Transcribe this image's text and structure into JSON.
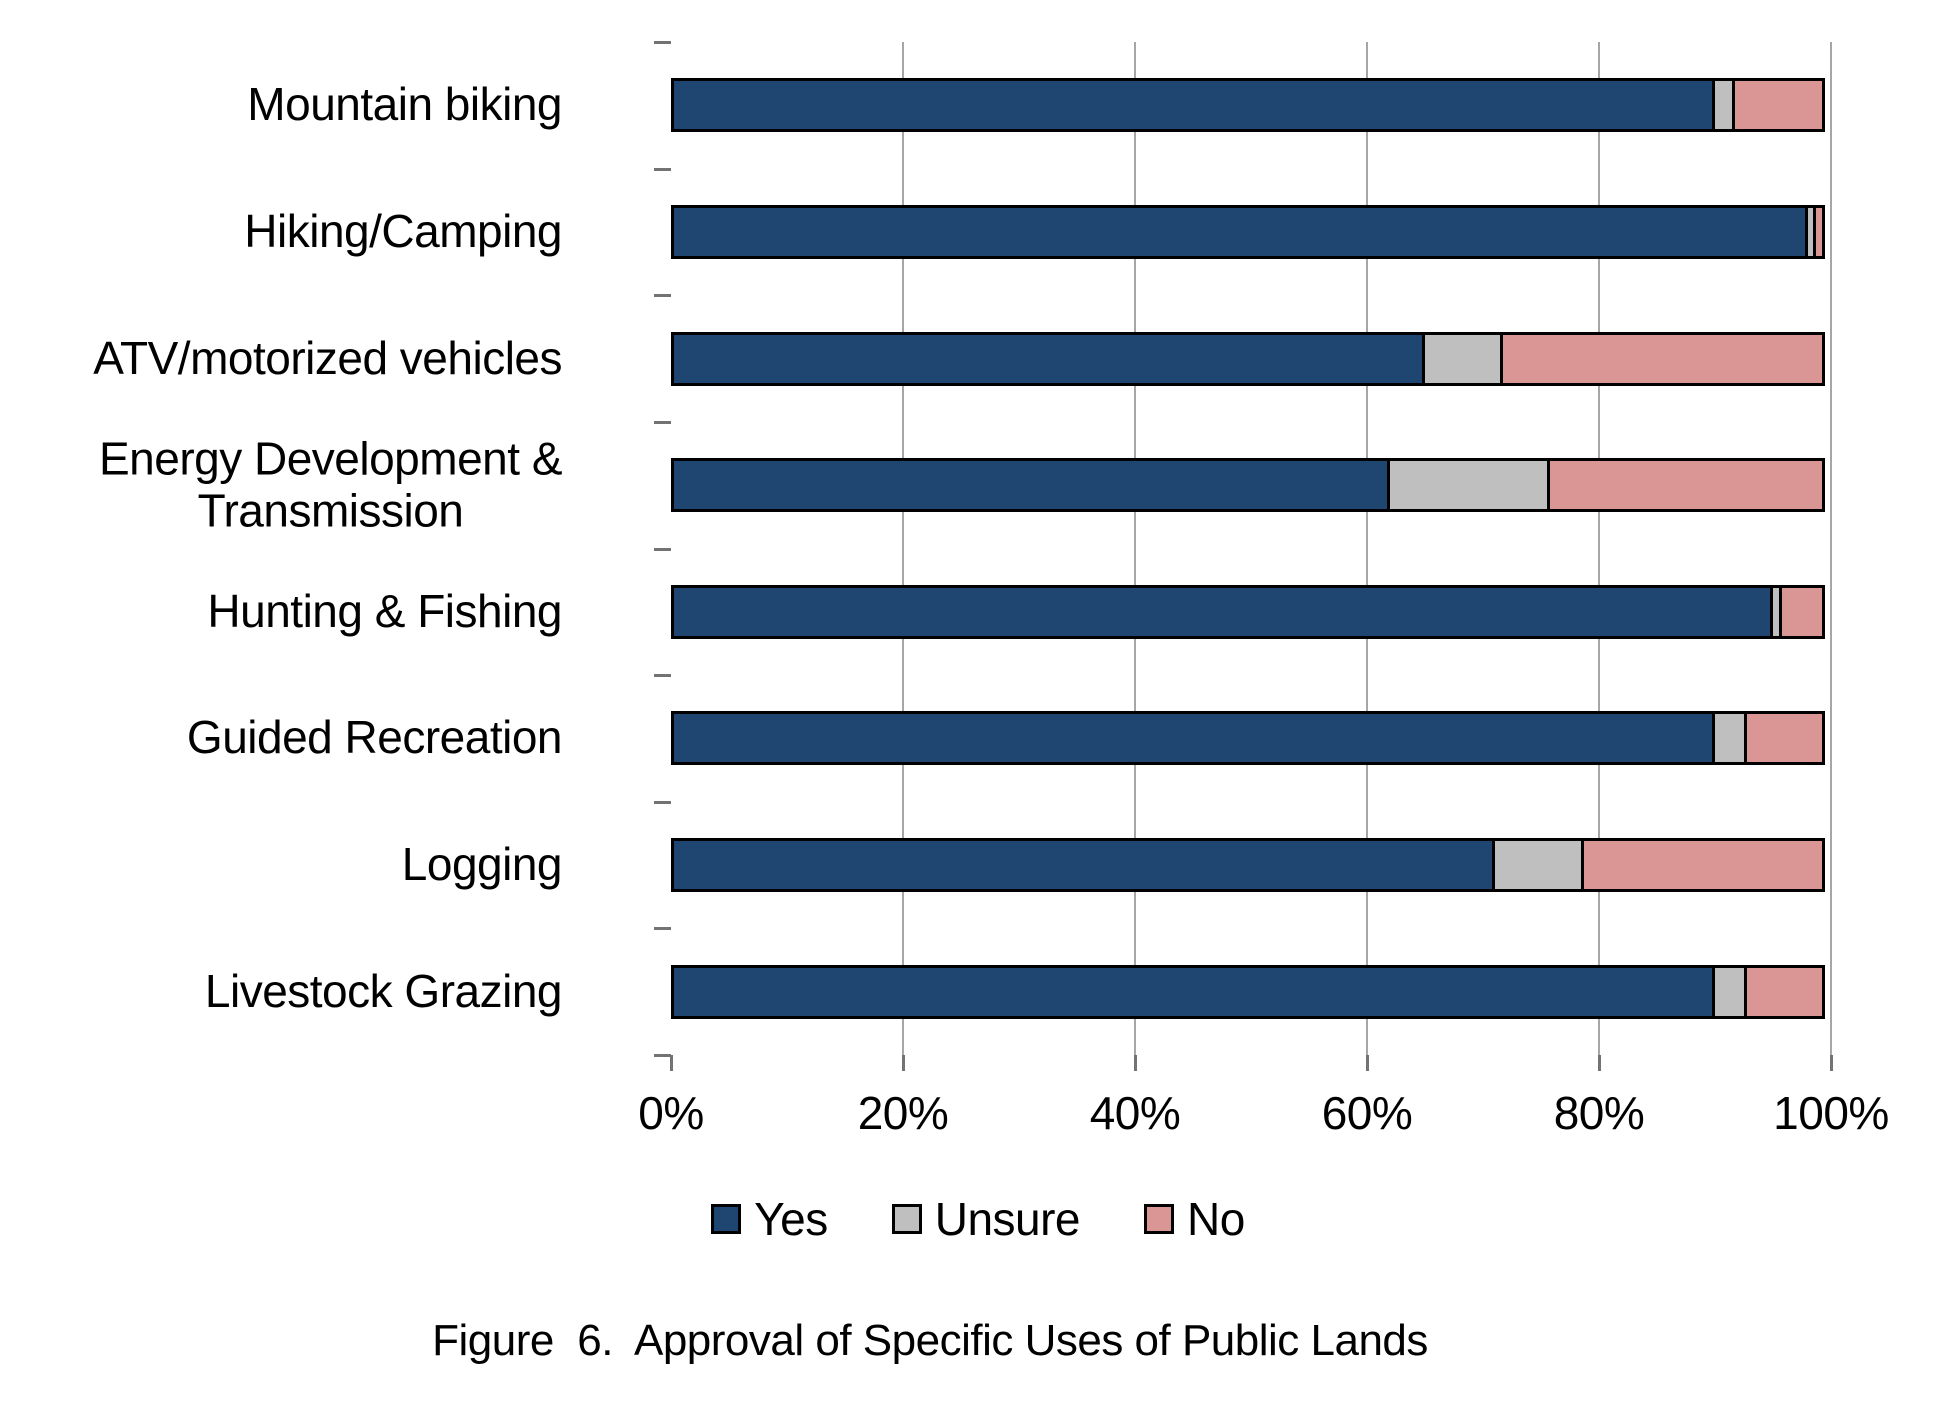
{
  "caption": "Figure  6.  Approval of Specific Uses of Public Lands",
  "chart_data": {
    "type": "bar",
    "orientation": "horizontal",
    "stacked": true,
    "categories": [
      "Mountain biking",
      "Hiking/Camping",
      "ATV/motorized vehicles",
      "Energy Development &\nTransmission",
      "Hunting & Fishing",
      "Guided Recreation",
      "Logging",
      "Livestock Grazing"
    ],
    "series": [
      {
        "name": "Yes",
        "color": "#1F4571",
        "values": [
          90,
          98,
          65,
          62,
          95,
          90,
          71,
          90
        ]
      },
      {
        "name": "Unsure",
        "color": "#BFBFBF",
        "values": [
          2,
          1,
          7,
          14,
          1,
          3,
          8,
          3
        ]
      },
      {
        "name": "No",
        "color": "#D99694",
        "values": [
          8,
          1,
          28,
          24,
          4,
          7,
          21,
          7
        ]
      }
    ],
    "x_axis": {
      "min": 0,
      "max": 100,
      "tick_step": 20,
      "tick_labels": [
        "0%",
        "20%",
        "40%",
        "60%",
        "80%",
        "100%"
      ]
    },
    "grid": "vertical-gray-lines",
    "legend_position": "bottom",
    "bar_border_color": "#000000",
    "axis_color": "#737373",
    "gridline_color": "#A6A6A6",
    "values_unit": "percent of respondents"
  }
}
